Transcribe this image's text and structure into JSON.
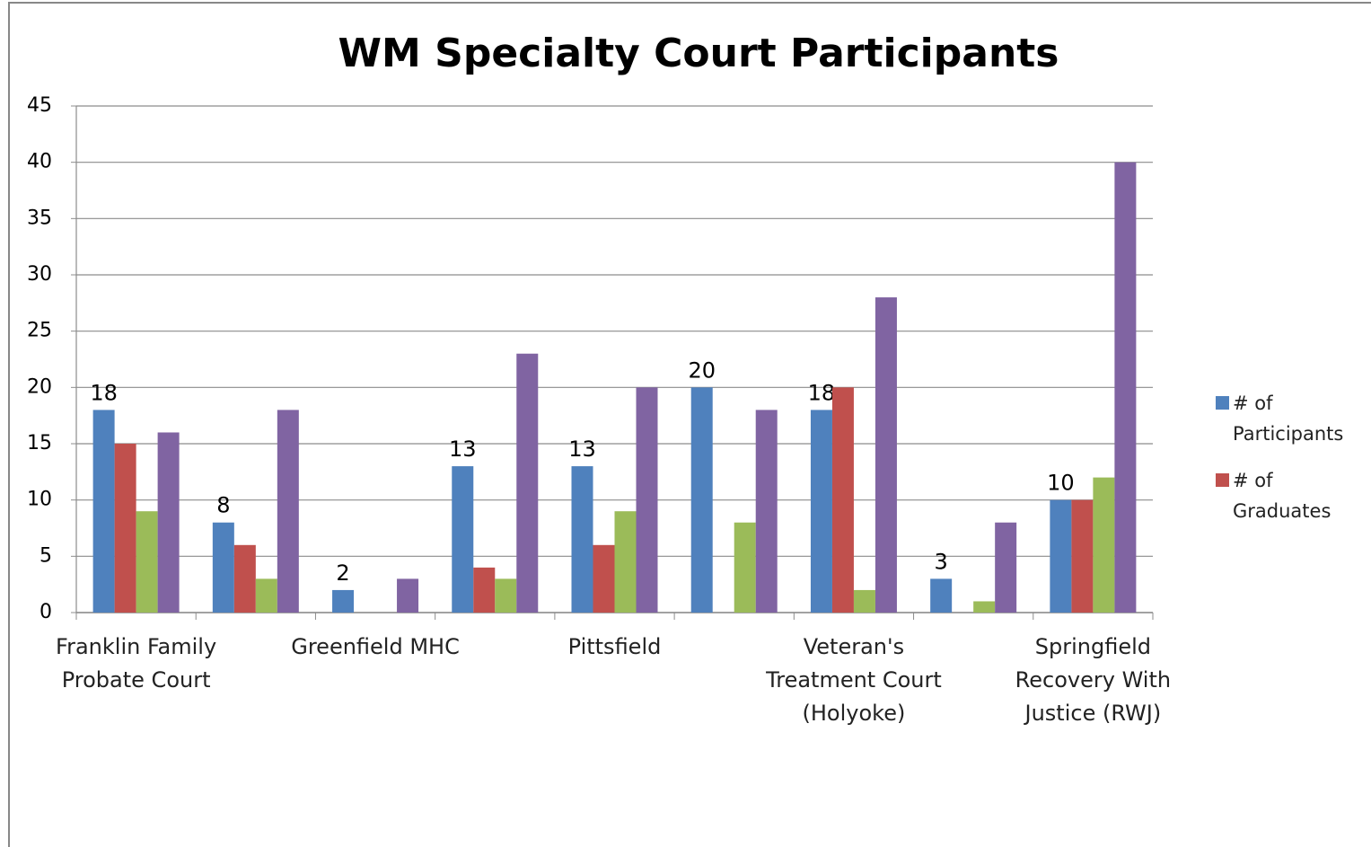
{
  "chart_data": {
    "type": "bar",
    "title": "WM Specialty Court Participants",
    "categories": [
      "Franklin Family Probate Court",
      null,
      "Greenfield MHC",
      null,
      "Pittsfield",
      null,
      "Veteran's Treatment Court (Holyoke)",
      null,
      "Springfield Recovery With Justice (RWJ)"
    ],
    "series": [
      {
        "name": "# of Participants",
        "color": "#4f81bd",
        "show_labels": true,
        "values": [
          18,
          8,
          2,
          13,
          13,
          20,
          18,
          3,
          10
        ]
      },
      {
        "name": "# of Graduates",
        "color": "#c0504d",
        "values": [
          15,
          6,
          null,
          4,
          6,
          null,
          20,
          null,
          10
        ]
      },
      {
        "color": "#9bbb59",
        "values": [
          9,
          3,
          null,
          3,
          9,
          8,
          2,
          1,
          12
        ]
      },
      {
        "color": "#8064a2",
        "values": [
          16,
          18,
          3,
          23,
          20,
          18,
          28,
          8,
          40
        ]
      }
    ],
    "ylim": [
      0,
      45
    ],
    "yticks": [
      0,
      5,
      10,
      15,
      20,
      25,
      30,
      35,
      40,
      45
    ],
    "grid": true,
    "legend": "right"
  }
}
